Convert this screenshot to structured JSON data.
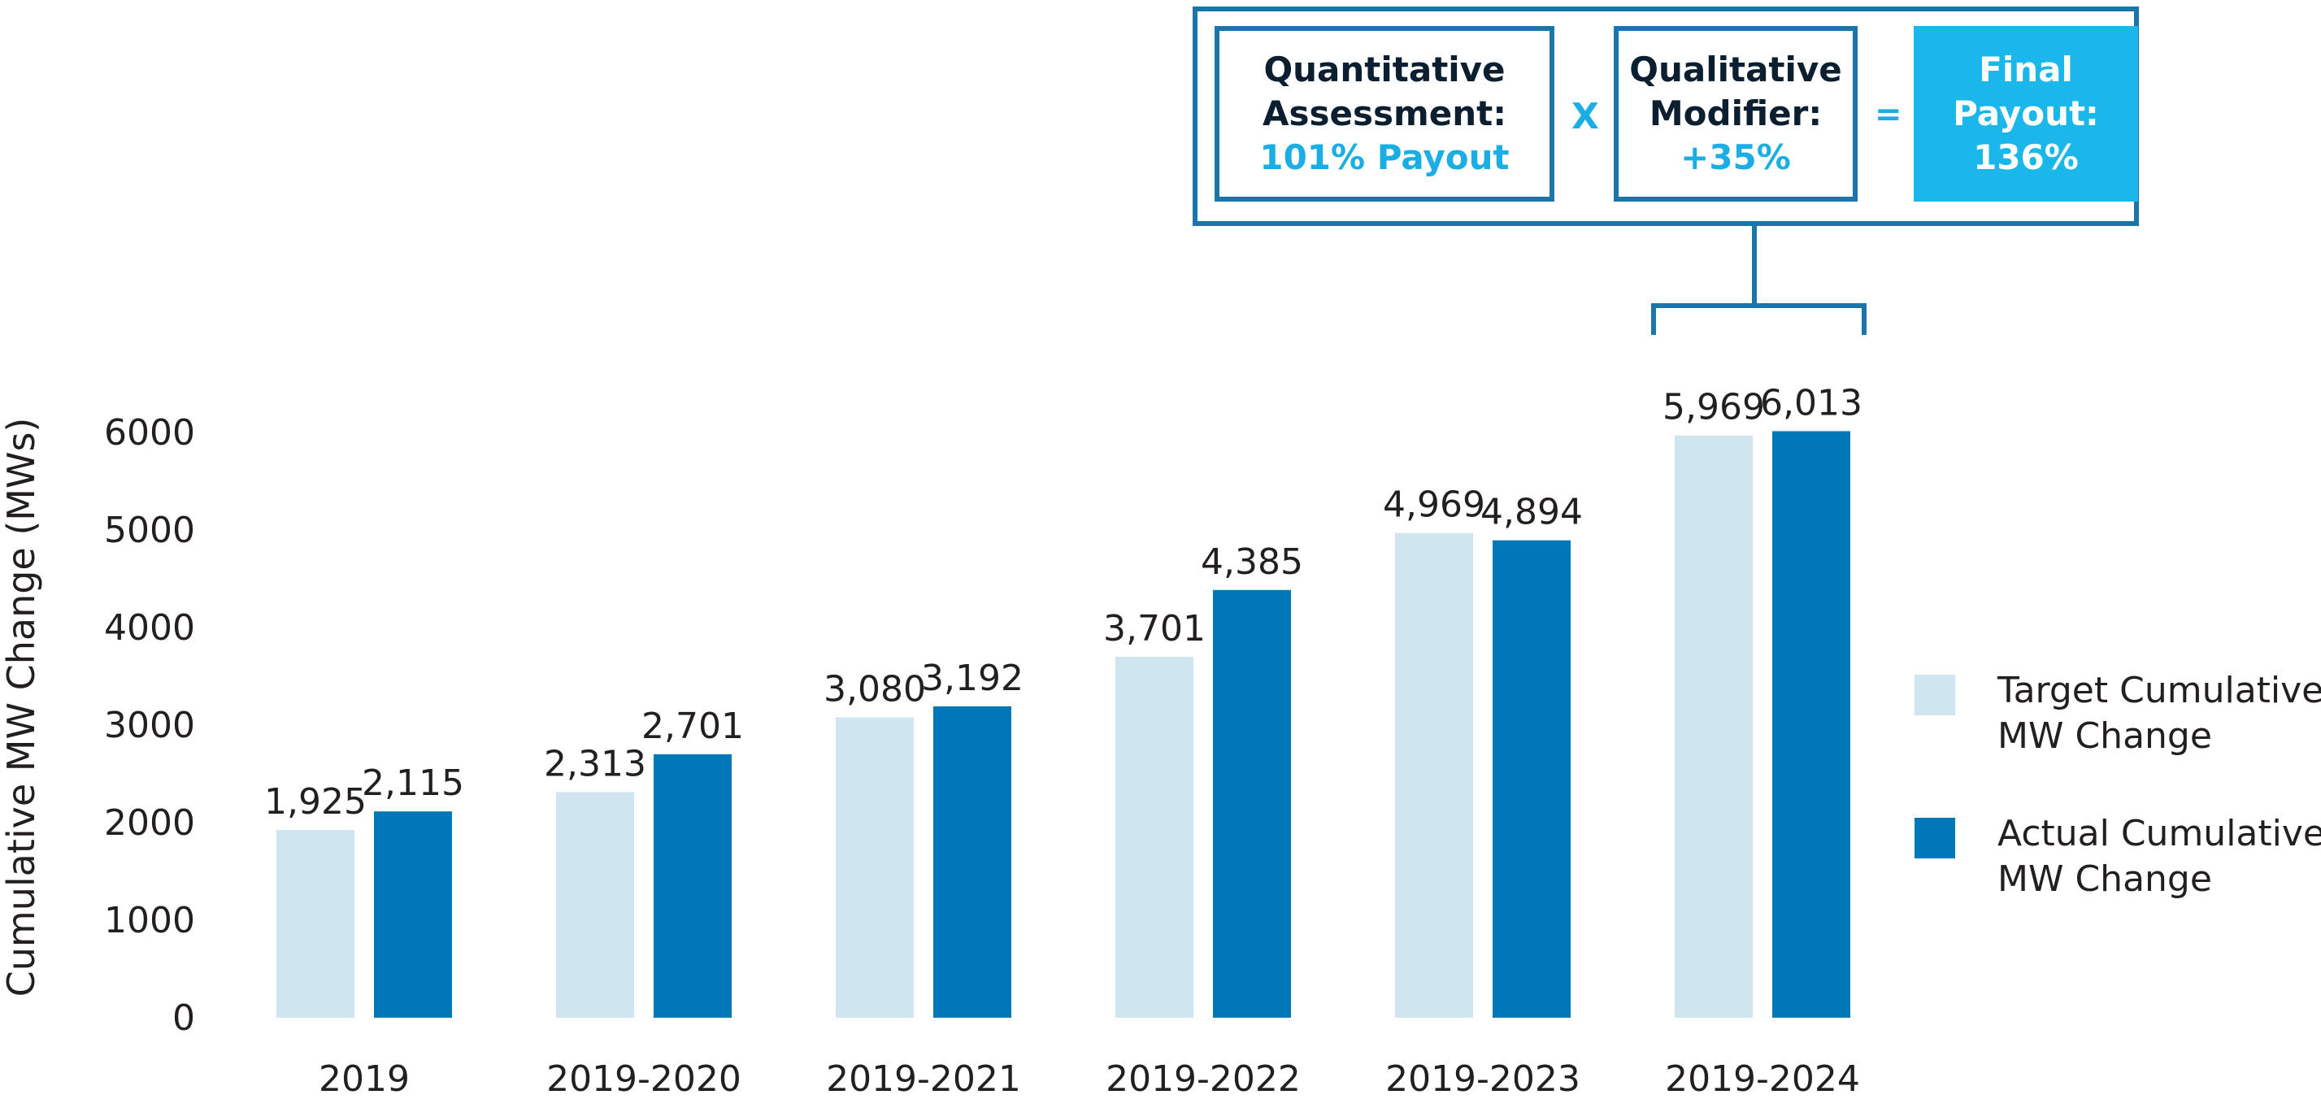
{
  "chart_data": {
    "type": "bar",
    "ylabel": "Cumulative MW Change (MWs)",
    "ylim": [
      0,
      6000
    ],
    "yticks": [
      0,
      1000,
      2000,
      3000,
      4000,
      5000,
      6000
    ],
    "categories": [
      "2019",
      "2019-2020",
      "2019-2021",
      "2019-2022",
      "2019-2023",
      "2019-2024"
    ],
    "series": [
      {
        "name": "Target Cumulative MW Change",
        "values": [
          1925,
          2313,
          3080,
          3701,
          4969,
          5969
        ],
        "labels": [
          "1,925",
          "2,313",
          "3,080",
          "3,701",
          "4,969",
          "5,969"
        ],
        "color": "#cfe5f0"
      },
      {
        "name": "Actual Cumulative MW Change",
        "values": [
          2115,
          2701,
          3192,
          4385,
          4894,
          6013
        ],
        "labels": [
          "2,115",
          "2,701",
          "3,192",
          "4,385",
          "4,894",
          "6,013"
        ],
        "color": "#0077b6"
      }
    ],
    "legend_position": "right",
    "grid": false
  },
  "formula": {
    "quantitative": {
      "line1": "Quantitative",
      "line2": "Assessment:",
      "value": "101% Payout"
    },
    "operator_multiply": "X",
    "qualitative": {
      "line1": "Qualitative",
      "line2": "Modifier:",
      "value": "+35%"
    },
    "operator_equals": "=",
    "final": {
      "line1": "Final",
      "line2": "Payout:",
      "value": "136%"
    }
  },
  "legend": {
    "target_line1": "Target Cumulative",
    "target_line2": "MW Change",
    "actual_line1": "Actual Cumulative",
    "actual_line2": "MW Change"
  },
  "colors": {
    "target": "#cfe5f0",
    "actual": "#0077b6",
    "frame": "#1c75a8",
    "accent": "#1aaee5"
  }
}
